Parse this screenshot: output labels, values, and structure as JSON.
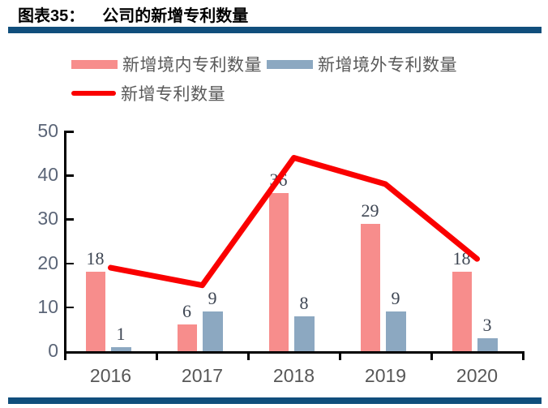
{
  "header": {
    "figure_label": "图表35：",
    "figure_title": "公司的新增专利数量"
  },
  "colors": {
    "accent_navy": "#104E7C",
    "bar_domestic": "#F78D8C",
    "bar_overseas": "#8CA8C1",
    "line_total": "#FA0000",
    "y_tick_label": "#5B6577",
    "x_tick_label": "#575757",
    "data_label": "#3E4653"
  },
  "chart_data": {
    "type": "bar",
    "title": "公司的新增专利数量",
    "categories": [
      "2016",
      "2017",
      "2018",
      "2019",
      "2020"
    ],
    "series": [
      {
        "name": "新增境内专利数量",
        "type": "bar",
        "color": "#F78D8C",
        "values": [
          18,
          6,
          36,
          29,
          18
        ]
      },
      {
        "name": "新增境外专利数量",
        "type": "bar",
        "color": "#8CA8C1",
        "values": [
          1,
          9,
          8,
          9,
          3
        ]
      },
      {
        "name": "新增专利数量",
        "type": "line",
        "color": "#FA0000",
        "values": [
          19,
          15,
          44,
          38,
          21
        ]
      }
    ],
    "ylim": [
      0,
      50
    ],
    "yticks": [
      0,
      10,
      20,
      30,
      40,
      50
    ],
    "grid": false,
    "legend_position": "top-left",
    "data_labels": "bars"
  }
}
